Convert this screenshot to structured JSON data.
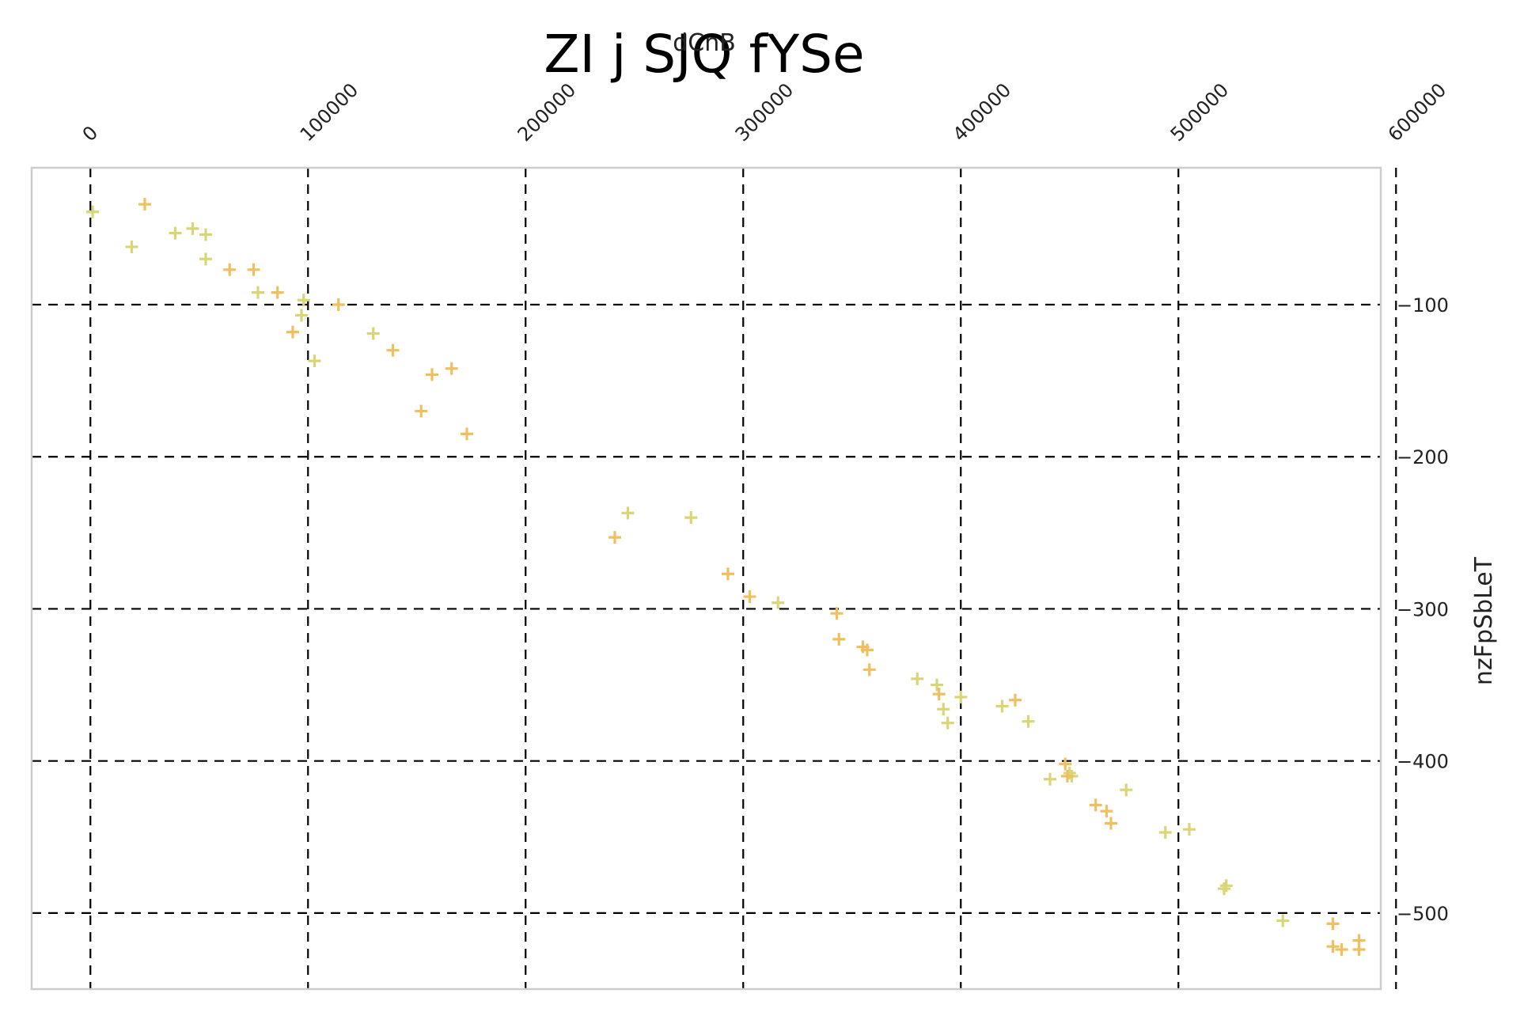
{
  "chart_data": {
    "type": "scatter",
    "title": "ZI j SJQ fYSe",
    "xlabel": "dCnB",
    "ylabel": "nzFpSbLeT",
    "xlim": [
      -27000,
      593000
    ],
    "ylim": [
      -550,
      -10
    ],
    "x_ticks": [
      0,
      100000,
      200000,
      300000,
      400000,
      500000,
      600000
    ],
    "y_ticks": [
      -100,
      -200,
      -300,
      -400,
      -500
    ],
    "x_tick_labels": [
      "0",
      "100000",
      "200000",
      "300000",
      "400000",
      "500000",
      "600000"
    ],
    "y_tick_labels": [
      "−100",
      "−200",
      "−300",
      "−400",
      "−500"
    ],
    "x_axis_position": "top",
    "y_axis_position": "right",
    "grid": true,
    "marker": "plus",
    "series": [
      {
        "color": "#d9d677",
        "points": [
          [
            1000,
            -39
          ],
          [
            19000,
            -62
          ],
          [
            39000,
            -53
          ],
          [
            47000,
            -50
          ],
          [
            53000,
            -54
          ],
          [
            53000,
            -70
          ],
          [
            77000,
            -92
          ],
          [
            98000,
            -97
          ],
          [
            97000,
            -107
          ],
          [
            103000,
            -137
          ],
          [
            130000,
            -119
          ],
          [
            247000,
            -237
          ],
          [
            276000,
            -240
          ],
          [
            316000,
            -296
          ],
          [
            380000,
            -346
          ],
          [
            389000,
            -350
          ],
          [
            392000,
            -366
          ],
          [
            394000,
            -375
          ],
          [
            400000,
            -358
          ],
          [
            419000,
            -364
          ],
          [
            431000,
            -374
          ],
          [
            441000,
            -412
          ],
          [
            450000,
            -408
          ],
          [
            451000,
            -410
          ],
          [
            476000,
            -419
          ],
          [
            494000,
            -447
          ],
          [
            505000,
            -445
          ],
          [
            522000,
            -482
          ],
          [
            521000,
            -484
          ],
          [
            548000,
            -505
          ]
        ]
      },
      {
        "color": "#f0bf60",
        "points": [
          [
            25000,
            -34
          ],
          [
            64000,
            -77
          ],
          [
            75000,
            -77
          ],
          [
            86000,
            -92
          ],
          [
            93000,
            -118
          ],
          [
            114000,
            -100
          ],
          [
            139000,
            -130
          ],
          [
            152000,
            -170
          ],
          [
            157000,
            -146
          ],
          [
            166000,
            -142
          ],
          [
            173000,
            -185
          ],
          [
            241000,
            -253
          ],
          [
            293000,
            -277
          ],
          [
            303000,
            -292
          ],
          [
            343000,
            -303
          ],
          [
            344000,
            -320
          ],
          [
            355000,
            -325
          ],
          [
            357000,
            -327
          ],
          [
            358000,
            -340
          ],
          [
            390000,
            -356
          ],
          [
            425000,
            -360
          ],
          [
            448000,
            -402
          ],
          [
            449000,
            -410
          ],
          [
            462000,
            -429
          ],
          [
            467000,
            -433
          ],
          [
            469000,
            -441
          ],
          [
            571000,
            -507
          ],
          [
            571000,
            -522
          ],
          [
            575000,
            -524
          ],
          [
            583000,
            -518
          ],
          [
            583000,
            -524
          ]
        ]
      }
    ]
  }
}
